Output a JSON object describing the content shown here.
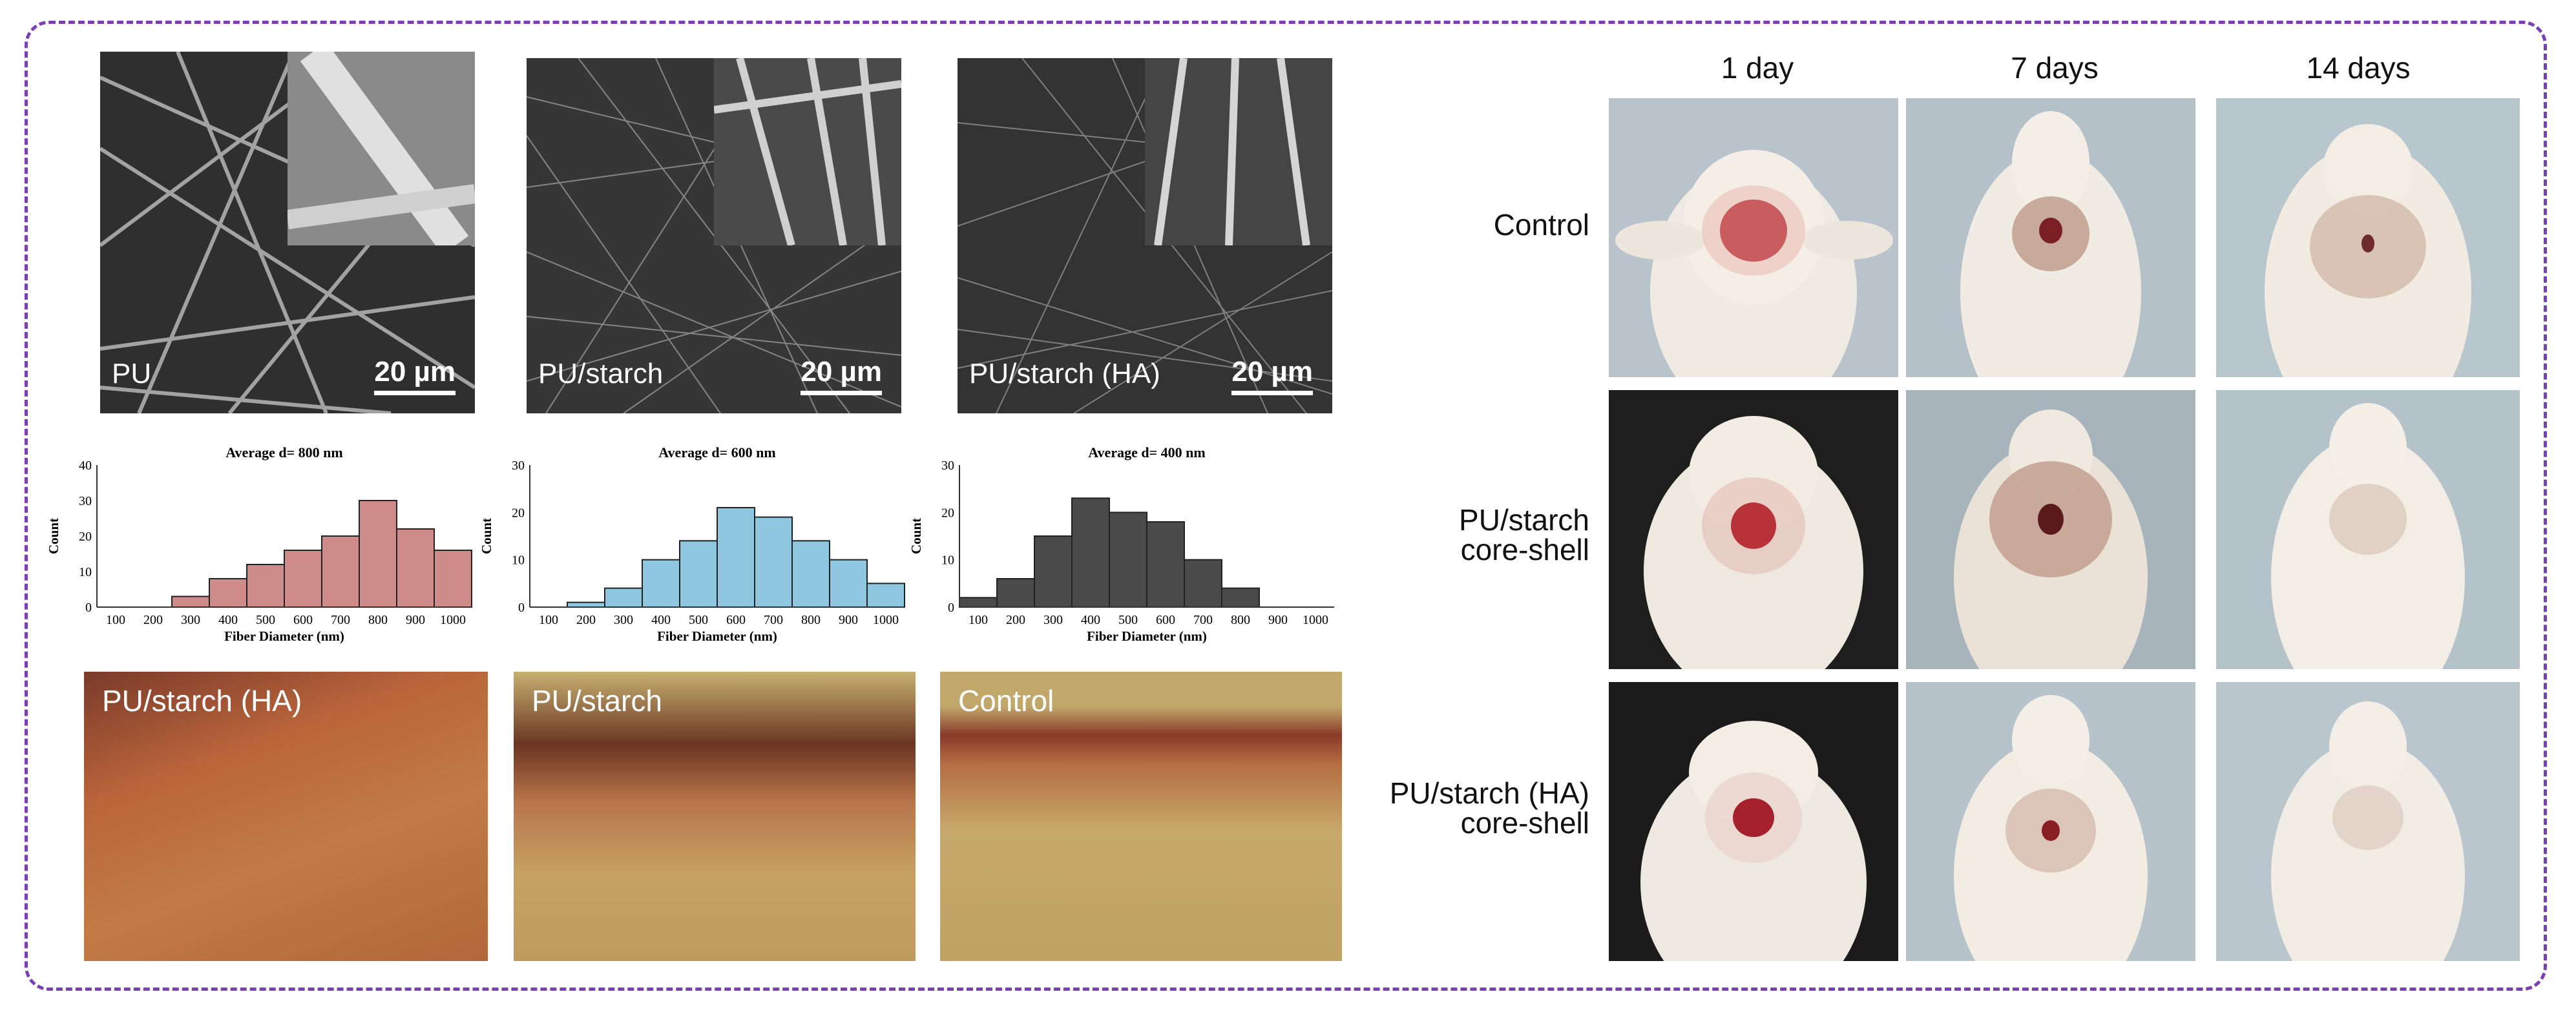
{
  "sem_panels": [
    {
      "label": "PU",
      "scale": "20 µm"
    },
    {
      "label": "PU/starch",
      "scale": "20 µm"
    },
    {
      "label": "PU/starch (HA)",
      "scale": "20 µm"
    }
  ],
  "chart_data": [
    {
      "type": "bar",
      "title": "Average d= 800 nm",
      "xlabel": "Fiber Diameter (nm)",
      "ylabel": "Count",
      "ylim": [
        0,
        40
      ],
      "yticks": [
        0,
        10,
        20,
        30,
        40
      ],
      "xticks": [
        "100",
        "200",
        "300",
        "400",
        "500",
        "600",
        "700",
        "800",
        "900",
        "1000"
      ],
      "bins": [
        [
          250,
          350
        ],
        [
          350,
          450
        ],
        [
          450,
          550
        ],
        [
          550,
          650
        ],
        [
          650,
          750
        ],
        [
          750,
          850
        ],
        [
          850,
          950
        ],
        [
          950,
          1050
        ]
      ],
      "values": [
        3,
        8,
        12,
        16,
        20,
        30,
        22,
        16
      ],
      "color": "#cf8a8a"
    },
    {
      "type": "bar",
      "title": "Average d= 600 nm",
      "xlabel": "Fiber Diameter (nm)",
      "ylabel": "Count",
      "ylim": [
        0,
        30
      ],
      "yticks": [
        0,
        10,
        20,
        30
      ],
      "xticks": [
        "100",
        "200",
        "300",
        "400",
        "500",
        "600",
        "700",
        "800",
        "900",
        "1000"
      ],
      "bins": [
        [
          150,
          250
        ],
        [
          250,
          350
        ],
        [
          350,
          450
        ],
        [
          450,
          550
        ],
        [
          550,
          650
        ],
        [
          650,
          750
        ],
        [
          750,
          850
        ],
        [
          850,
          950
        ],
        [
          950,
          1050
        ]
      ],
      "values": [
        1,
        4,
        10,
        14,
        21,
        19,
        14,
        10,
        5
      ],
      "color": "#8ec7df"
    },
    {
      "type": "bar",
      "title": "Average d= 400 nm",
      "xlabel": "Fiber Diameter (nm)",
      "ylabel": "Count",
      "ylim": [
        0,
        30
      ],
      "yticks": [
        0,
        10,
        20,
        30
      ],
      "xticks": [
        "100",
        "200",
        "300",
        "400",
        "500",
        "600",
        "700",
        "800",
        "900",
        "1000"
      ],
      "bins": [
        [
          50,
          150
        ],
        [
          150,
          250
        ],
        [
          250,
          350
        ],
        [
          350,
          450
        ],
        [
          450,
          550
        ],
        [
          550,
          650
        ],
        [
          650,
          750
        ],
        [
          750,
          850
        ]
      ],
      "values": [
        2,
        6,
        15,
        23,
        20,
        18,
        10,
        4
      ],
      "color": "#4a4a4a"
    }
  ],
  "tissue_panels": [
    {
      "label": "PU/starch (HA)"
    },
    {
      "label": "PU/starch"
    },
    {
      "label": "Control"
    }
  ],
  "wound_grid": {
    "days": [
      "1 day",
      "7 days",
      "14 days"
    ],
    "rows": [
      {
        "line1": "Control",
        "line2": ""
      },
      {
        "line1": "PU/starch",
        "line2": "core-shell"
      },
      {
        "line1": "PU/starch (HA)",
        "line2": "core-shell"
      }
    ]
  }
}
